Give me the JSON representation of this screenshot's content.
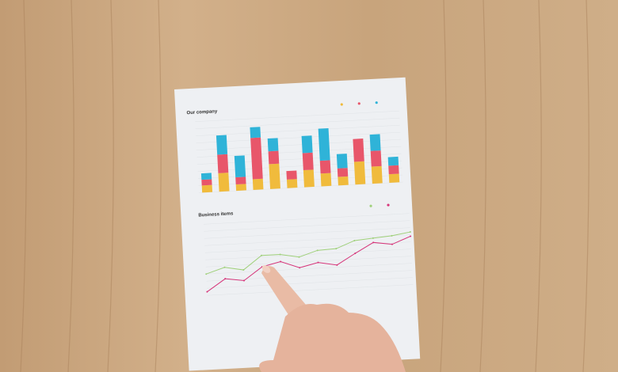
{
  "scene": "wooden-table-paper-charts-hand",
  "colors": {
    "wood": "#c9a57e",
    "paper": "#eef0f3",
    "yellow": "#f0bb3c",
    "red": "#e8566a",
    "blue": "#2fb3d8",
    "pink": "#d6357a",
    "green": "#9fd07a",
    "skin": "#e9bba5"
  },
  "chart_data": [
    {
      "type": "bar",
      "title": "Our company",
      "stacked": true,
      "ylim": [
        0,
        100
      ],
      "grid": true,
      "legend": "top-right",
      "series": [
        {
          "color": "#f0bb3c",
          "values": [
            10,
            26,
            9,
            15,
            35,
            12,
            24,
            18,
            12,
            32,
            24,
            12
          ]
        },
        {
          "color": "#e8566a",
          "values": [
            8,
            26,
            10,
            58,
            18,
            12,
            24,
            18,
            12,
            32,
            22,
            12
          ]
        },
        {
          "color": "#2fb3d8",
          "values": [
            9,
            27,
            30,
            15,
            18,
            0,
            24,
            45,
            20,
            0,
            23,
            12
          ]
        }
      ]
    },
    {
      "type": "line",
      "title": "Business items",
      "ylim": [
        0,
        100
      ],
      "grid": true,
      "legend": "top-right",
      "series": [
        {
          "color": "#9fd07a",
          "values": [
            30,
            38,
            33,
            52,
            52,
            47,
            55,
            56,
            66,
            68,
            70,
            74
          ]
        },
        {
          "color": "#d6357a",
          "values": [
            5,
            22,
            18,
            36,
            42,
            32,
            38,
            33,
            48,
            62,
            58,
            68
          ]
        }
      ]
    }
  ]
}
